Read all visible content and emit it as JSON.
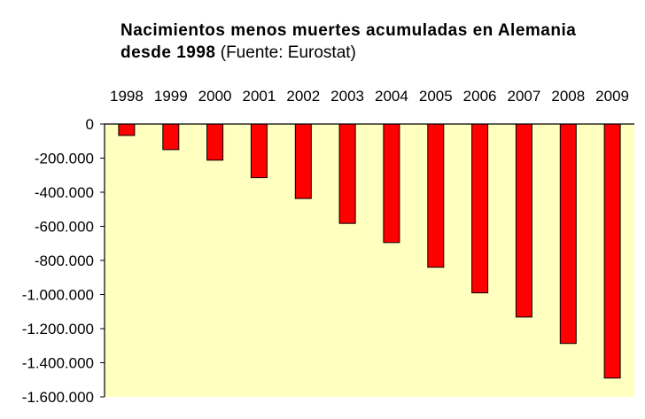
{
  "chart_data": {
    "type": "bar",
    "title": "Nacimientos menos muertes acumuladas en Alemania desde 1998",
    "title_line1": "Nacimientos menos muertes acumuladas en Alemania",
    "title_line2": "desde 1998",
    "subtitle": "(Fuente: Eurostat)",
    "xlabel": "",
    "ylabel": "",
    "categories": [
      "1998",
      "1999",
      "2000",
      "2001",
      "2002",
      "2003",
      "2004",
      "2005",
      "2006",
      "2007",
      "2008",
      "2009"
    ],
    "values": [
      -67000,
      -150000,
      -212000,
      -315000,
      -437000,
      -583000,
      -695000,
      -840000,
      -990000,
      -1132000,
      -1287000,
      -1490000
    ],
    "ylim": [
      -1600000,
      0
    ],
    "yticks": [
      0,
      -200000,
      -400000,
      -600000,
      -800000,
      -1000000,
      -1200000,
      -1400000,
      -1600000
    ],
    "ytick_labels": [
      "0",
      "-200.000",
      "-400.000",
      "-600.000",
      "-800.000",
      "-1.000.000",
      "-1.200.000",
      "-1.400.000",
      "-1.600.000"
    ],
    "x_axis_position": "top",
    "grid": false,
    "legend": "none",
    "colors": {
      "plot_background": "#ffffc0",
      "bar_fill": "#ff0000",
      "bar_stroke": "#000000",
      "axis": "#000000"
    }
  }
}
